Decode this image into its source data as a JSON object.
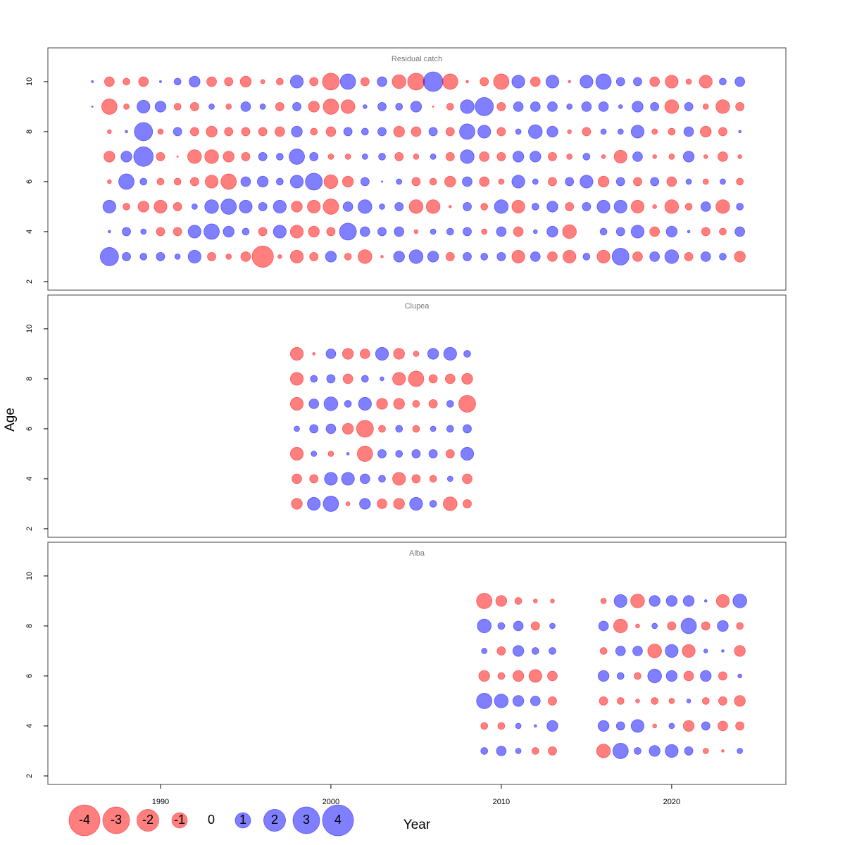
{
  "chart_data": {
    "type": "bubble",
    "x_label": "Year",
    "y_label": "Age",
    "xlim": [
      1983.39,
      2026.7
    ],
    "ylim": [
      1.66,
      11.35
    ],
    "xticks": [
      1990,
      2000,
      2010,
      2020
    ],
    "yticks": [
      2,
      4,
      6,
      8,
      10
    ],
    "negative_color": "#FF000080",
    "positive_color": "#0000FF80",
    "legend": [
      -4,
      -3,
      -2,
      -1,
      0,
      1,
      2,
      3,
      4
    ],
    "panels": [
      {
        "title": "Residual catch",
        "x": [
          1986,
          1987,
          1988,
          1989,
          1990,
          1991,
          1992,
          1993,
          1994,
          1995,
          1996,
          1997,
          1998,
          1999,
          2000,
          2001,
          2002,
          2003,
          2004,
          2005,
          2006,
          2007,
          2008,
          2009,
          2010,
          2011,
          2012,
          2013,
          2014,
          2015,
          2016,
          2017,
          2018,
          2019,
          2020,
          2021,
          2022,
          2023,
          2024
        ],
        "ages": [
          3,
          4,
          5,
          6,
          7,
          8,
          9,
          10
        ],
        "values": [
          [
            null,
            1.4,
            0.3,
            0.2,
            0.3,
            0.13,
            0.7,
            -0.3,
            -0.13,
            -0.4,
            -1.9,
            -0.07,
            -0.7,
            -0.3,
            0.5,
            -0.2,
            -0.8,
            -0.03,
            0.5,
            0.8,
            0.5,
            -0.3,
            0.3,
            0.2,
            0.3,
            -0.7,
            0.4,
            -0.4,
            -0.7,
            0.2,
            -0.7,
            1.2,
            -0.4,
            0.4,
            0.8,
            -0.3,
            0.4,
            0.2,
            -0.5
          ],
          [
            null,
            0.03,
            0.3,
            0.13,
            -0.3,
            -0.3,
            0.7,
            1.0,
            0.5,
            0.2,
            -0.3,
            0.7,
            -0.7,
            -0.5,
            -0.3,
            1.2,
            0.4,
            0.3,
            0.4,
            -0.07,
            0.13,
            0.2,
            0.3,
            -0.13,
            0.4,
            -0.4,
            0.07,
            0.5,
            -0.8,
            0,
            0.2,
            0.3,
            0.7,
            -0.4,
            0.5,
            0.03,
            -0.3,
            -0.2,
            0.4
          ],
          [
            null,
            0.7,
            -0.2,
            -0.5,
            -0.7,
            -0.3,
            0.13,
            0.8,
            1.0,
            0.7,
            0.3,
            0.7,
            -0.5,
            -0.7,
            -1.0,
            0.4,
            0.8,
            0.13,
            0.3,
            -0.8,
            -0.8,
            -0.03,
            0.3,
            -0.2,
            0.8,
            -0.7,
            0.2,
            0.5,
            -0.3,
            0.3,
            0.7,
            0.7,
            -0.7,
            -0.07,
            -0.8,
            -0.2,
            0.4,
            -0.8,
            0.2
          ],
          [
            null,
            -0.07,
            1.0,
            0.2,
            -0.2,
            -0.2,
            -0.3,
            -0.7,
            -1.0,
            0.4,
            0.5,
            0.2,
            0.7,
            1.2,
            -0.8,
            -0.5,
            0.3,
            0.01,
            0.13,
            -0.3,
            -0.2,
            -0.5,
            0.4,
            -0.4,
            -0.13,
            0.7,
            0.13,
            -0.3,
            0.3,
            0.7,
            -0.5,
            0.3,
            -0.3,
            0.3,
            -0.4,
            0.13,
            -0.13,
            0.13,
            -0.2
          ],
          [
            null,
            -0.5,
            0.5,
            1.6,
            -0.3,
            -0.01,
            -0.8,
            -0.8,
            -0.5,
            -0.3,
            0.3,
            0.2,
            1.0,
            0.3,
            -0.13,
            -0.13,
            0.13,
            0.2,
            -0.3,
            -0.13,
            0.13,
            -0.3,
            0.8,
            -0.4,
            -0.3,
            0.5,
            0.5,
            -0.3,
            -0.13,
            0.2,
            -0.07,
            -0.7,
            0.4,
            -0.07,
            -0.13,
            0.5,
            -0.07,
            -0.4,
            -0.07
          ],
          [
            null,
            -0.07,
            0.03,
            1.4,
            -0.13,
            0.3,
            -0.3,
            -0.5,
            -0.3,
            -0.3,
            -0.3,
            -0.4,
            0.5,
            -0.2,
            -0.4,
            0.3,
            0.2,
            0.3,
            -0.5,
            -0.4,
            0.3,
            -0.3,
            1.0,
            0.7,
            -0.3,
            0.13,
            0.8,
            0.5,
            -0.07,
            -0.3,
            0.13,
            0.13,
            0.7,
            -0.13,
            -0.2,
            0.4,
            -0.5,
            -0.3,
            0.03
          ],
          [
            0.01,
            -1.0,
            -0.13,
            0.7,
            0.5,
            -0.2,
            -0.3,
            0.13,
            -0.13,
            0.4,
            0.13,
            -0.3,
            0.3,
            -0.5,
            -1.0,
            -0.8,
            0.07,
            0.3,
            0.2,
            0.5,
            -0.01,
            -0.2,
            0.8,
            1.4,
            -0.3,
            0.4,
            0.4,
            0.4,
            0.13,
            0.4,
            0.4,
            0.07,
            0.5,
            0.3,
            -0.8,
            0.3,
            -0.13,
            -0.8,
            -0.3
          ],
          [
            0.02,
            -0.4,
            -0.2,
            -0.4,
            0.02,
            0.2,
            0.5,
            -0.4,
            -0.3,
            -0.5,
            -0.08,
            -0.2,
            0.7,
            -0.3,
            -1.2,
            1.0,
            -0.3,
            0.4,
            -0.8,
            -1.2,
            1.6,
            -1.0,
            -0.03,
            -0.3,
            -1.0,
            0.7,
            -0.4,
            0.7,
            -0.03,
            0.7,
            1.0,
            0.3,
            0.3,
            -0.4,
            -0.7,
            -0.13,
            -0.7,
            0.2,
            0.4
          ]
        ]
      },
      {
        "title": "Clupea",
        "x": [
          1998,
          1999,
          2000,
          2001,
          2002,
          2003,
          2004,
          2005,
          2006,
          2007,
          2008
        ],
        "ages": [
          3,
          4,
          5,
          6,
          7,
          8,
          9
        ],
        "values": [
          [
            -0.5,
            0.7,
            1.0,
            -0.07,
            0.5,
            -0.4,
            -0.5,
            0.7,
            0.2,
            -0.8,
            -0.3
          ],
          [
            -0.4,
            -0.3,
            0.7,
            0.7,
            0.4,
            0.2,
            -0.7,
            -0.3,
            -0.2,
            0.13,
            -0.4
          ],
          [
            -0.7,
            0.13,
            -0.13,
            0.03,
            -1.0,
            0.3,
            0.2,
            0.3,
            0.3,
            -0.3,
            0.7
          ],
          [
            0.13,
            0.3,
            0.4,
            -0.5,
            -1.2,
            -0.2,
            0.2,
            -0.2,
            0.13,
            0.2,
            0.3
          ],
          [
            -0.7,
            0.4,
            0.8,
            0.2,
            0.7,
            -0.5,
            -0.5,
            -0.2,
            -0.3,
            0.2,
            -1.2
          ],
          [
            -0.7,
            0.2,
            0.3,
            -0.4,
            0.2,
            0.07,
            -0.7,
            -1.0,
            -0.3,
            -0.4,
            -0.5
          ],
          [
            -0.7,
            -0.03,
            0.4,
            -0.5,
            -0.4,
            0.7,
            -0.5,
            -0.13,
            0.5,
            0.7,
            0.2
          ]
        ]
      },
      {
        "title": "Alba",
        "x": [
          2009,
          2010,
          2011,
          2012,
          2013,
          2014,
          2015,
          2016,
          2017,
          2018,
          2019,
          2020,
          2021,
          2022,
          2023,
          2024
        ],
        "ages": [
          3,
          4,
          5,
          6,
          7,
          8,
          9
        ],
        "values": [
          [
            0.2,
            0.4,
            0.13,
            -0.2,
            -0.3,
            null,
            null,
            -0.8,
            1.0,
            0.2,
            0.5,
            0.7,
            0.3,
            -0.13,
            -0.03,
            0.13
          ],
          [
            -0.2,
            -0.2,
            0.13,
            0.03,
            0.5,
            null,
            null,
            0.5,
            0.3,
            0.7,
            -0.07,
            0.13,
            -0.5,
            0.3,
            -0.4,
            -0.3
          ],
          [
            1.0,
            0.8,
            0.5,
            0.4,
            -0.3,
            null,
            null,
            -0.3,
            -0.2,
            -0.07,
            -0.2,
            -0.13,
            0.07,
            -0.2,
            -0.3,
            -0.5
          ],
          [
            -0.5,
            -0.2,
            -0.5,
            -0.7,
            -0.4,
            null,
            null,
            0.5,
            0.2,
            -0.2,
            0.8,
            0.5,
            -0.4,
            0.5,
            -0.3,
            0.07
          ],
          [
            0.13,
            -0.3,
            0.5,
            0.2,
            0.2,
            null,
            null,
            -0.2,
            0.4,
            0.4,
            -0.8,
            0.7,
            -0.7,
            0.07,
            0.03,
            -0.5
          ],
          [
            0.8,
            0.2,
            0.4,
            -0.3,
            0.13,
            null,
            null,
            0.4,
            -0.8,
            -0.07,
            0.13,
            -0.3,
            1.0,
            -0.3,
            0.5,
            -0.2
          ],
          [
            -1.0,
            -0.5,
            -0.2,
            -0.07,
            -0.07,
            null,
            null,
            -0.13,
            0.7,
            -0.8,
            0.5,
            0.5,
            0.5,
            0.03,
            -0.7,
            0.8
          ]
        ]
      }
    ]
  }
}
